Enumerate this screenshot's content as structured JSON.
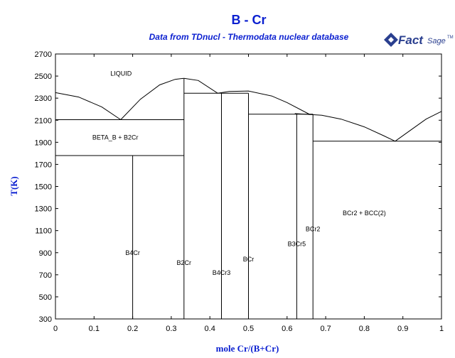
{
  "chart_data": {
    "type": "line",
    "title": "B - Cr",
    "subtitle": "Data from TDnucl - Thermodata nuclear database",
    "brand": "FactSage",
    "xlabel": "mole Cr/(B+Cr)",
    "ylabel": "T(K)",
    "xlim": [
      0,
      1
    ],
    "ylim": [
      300,
      2700
    ],
    "x_ticks": [
      0,
      0.1,
      0.2,
      0.3,
      0.4,
      0.5,
      0.6,
      0.7,
      0.8,
      0.9,
      1
    ],
    "x_tick_labels": [
      "0",
      "0.1",
      "0.2",
      "0.3",
      "0.4",
      "0.5",
      "0.6",
      "0.7",
      "0.8",
      "0.9",
      "1"
    ],
    "y_ticks": [
      300,
      500,
      700,
      900,
      1100,
      1300,
      1500,
      1700,
      1900,
      2100,
      2300,
      2500,
      2700
    ],
    "y_tick_labels": [
      "300",
      "500",
      "700",
      "900",
      "1100",
      "1300",
      "1500",
      "1700",
      "1900",
      "2100",
      "2300",
      "2500",
      "2700"
    ],
    "series": [
      {
        "values": [
          [
            0,
            2350
          ],
          [
            0.06,
            2310
          ],
          [
            0.12,
            2220
          ],
          [
            0.169,
            2105
          ]
        ]
      },
      {
        "values": [
          [
            0.169,
            2105
          ],
          [
            0.22,
            2290
          ],
          [
            0.27,
            2420
          ],
          [
            0.31,
            2470
          ],
          [
            0.333,
            2480
          ]
        ]
      },
      {
        "values": [
          [
            0.333,
            2480
          ],
          [
            0.37,
            2460
          ],
          [
            0.42,
            2345
          ]
        ]
      },
      {
        "values": [
          [
            0.42,
            2345
          ],
          [
            0.45,
            2360
          ],
          [
            0.5,
            2365
          ],
          [
            0.56,
            2320
          ],
          [
            0.6,
            2260
          ],
          [
            0.66,
            2150
          ]
        ]
      },
      {
        "values": [
          [
            0.62,
            2160
          ],
          [
            0.69,
            2145
          ],
          [
            0.74,
            2110
          ],
          [
            0.8,
            2040
          ],
          [
            0.85,
            1960
          ],
          [
            0.88,
            1910
          ]
        ]
      },
      {
        "values": [
          [
            0.88,
            1910
          ],
          [
            0.92,
            2010
          ],
          [
            0.96,
            2110
          ],
          [
            1.0,
            2180
          ]
        ]
      },
      {
        "values": [
          [
            0,
            2105
          ],
          [
            0.333,
            2105
          ]
        ]
      },
      {
        "values": [
          [
            0,
            1780
          ],
          [
            0.333,
            1780
          ]
        ]
      },
      {
        "values": [
          [
            0.2,
            1780
          ],
          [
            0.2,
            300
          ]
        ]
      },
      {
        "values": [
          [
            0.333,
            2480
          ],
          [
            0.333,
            300
          ]
        ]
      },
      {
        "values": [
          [
            0.333,
            2345
          ],
          [
            0.5,
            2345
          ]
        ]
      },
      {
        "values": [
          [
            0.43,
            2345
          ],
          [
            0.43,
            300
          ]
        ]
      },
      {
        "values": [
          [
            0.5,
            2345
          ],
          [
            0.5,
            300
          ]
        ]
      },
      {
        "values": [
          [
            0.5,
            2155
          ],
          [
            0.667,
            2155
          ]
        ]
      },
      {
        "values": [
          [
            0.625,
            2155
          ],
          [
            0.625,
            300
          ]
        ]
      },
      {
        "values": [
          [
            0.667,
            2155
          ],
          [
            0.667,
            300
          ]
        ]
      },
      {
        "values": [
          [
            0.667,
            1910
          ],
          [
            1.0,
            1910
          ]
        ]
      }
    ],
    "annotations": [
      {
        "text": "LIQUID",
        "x": 0.17,
        "y": 2505
      },
      {
        "text": "BETA_B + B2Cr",
        "x": 0.155,
        "y": 1925
      },
      {
        "text": "B4Cr",
        "x": 0.2,
        "y": 880
      },
      {
        "text": "B2Cr",
        "x": 0.333,
        "y": 790
      },
      {
        "text": "B4Cr3",
        "x": 0.43,
        "y": 700
      },
      {
        "text": "BCr",
        "x": 0.5,
        "y": 820
      },
      {
        "text": "B3Cr5",
        "x": 0.625,
        "y": 960
      },
      {
        "text": "BCr2",
        "x": 0.667,
        "y": 1095
      },
      {
        "text": "BCr2 + BCC(2)",
        "x": 0.8,
        "y": 1240
      }
    ]
  }
}
